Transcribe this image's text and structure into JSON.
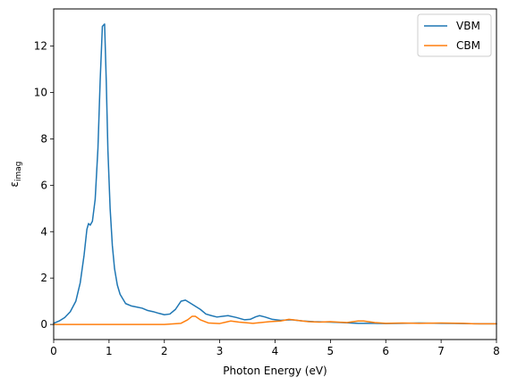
{
  "chart_data": {
    "type": "line",
    "title": "",
    "xlabel": "Photon Energy (eV)",
    "ylabel_main": "ε",
    "ylabel_sub": "imag",
    "xlim": [
      0,
      8
    ],
    "ylim": [
      -0.65,
      13.6
    ],
    "xticks": [
      0,
      1,
      2,
      3,
      4,
      5,
      6,
      7,
      8
    ],
    "yticks": [
      0,
      2,
      4,
      6,
      8,
      10,
      12
    ],
    "grid": false,
    "legend_position": "top-right",
    "series": [
      {
        "name": "VBM",
        "color": "#1f77b4",
        "points": [
          [
            0.0,
            0.05
          ],
          [
            0.1,
            0.15
          ],
          [
            0.2,
            0.3
          ],
          [
            0.3,
            0.55
          ],
          [
            0.4,
            1.0
          ],
          [
            0.48,
            1.8
          ],
          [
            0.55,
            3.0
          ],
          [
            0.6,
            4.1
          ],
          [
            0.63,
            4.35
          ],
          [
            0.66,
            4.28
          ],
          [
            0.7,
            4.45
          ],
          [
            0.75,
            5.4
          ],
          [
            0.8,
            7.6
          ],
          [
            0.84,
            10.5
          ],
          [
            0.88,
            12.85
          ],
          [
            0.92,
            12.95
          ],
          [
            0.95,
            10.5
          ],
          [
            0.98,
            7.5
          ],
          [
            1.02,
            5.0
          ],
          [
            1.06,
            3.4
          ],
          [
            1.1,
            2.4
          ],
          [
            1.15,
            1.7
          ],
          [
            1.2,
            1.3
          ],
          [
            1.3,
            0.9
          ],
          [
            1.4,
            0.8
          ],
          [
            1.5,
            0.75
          ],
          [
            1.6,
            0.7
          ],
          [
            1.7,
            0.6
          ],
          [
            1.8,
            0.55
          ],
          [
            1.9,
            0.48
          ],
          [
            2.0,
            0.42
          ],
          [
            2.1,
            0.45
          ],
          [
            2.2,
            0.65
          ],
          [
            2.3,
            1.0
          ],
          [
            2.38,
            1.05
          ],
          [
            2.45,
            0.95
          ],
          [
            2.55,
            0.8
          ],
          [
            2.65,
            0.65
          ],
          [
            2.75,
            0.45
          ],
          [
            2.85,
            0.38
          ],
          [
            2.95,
            0.32
          ],
          [
            3.05,
            0.35
          ],
          [
            3.15,
            0.38
          ],
          [
            3.3,
            0.3
          ],
          [
            3.45,
            0.2
          ],
          [
            3.55,
            0.22
          ],
          [
            3.65,
            0.33
          ],
          [
            3.72,
            0.38
          ],
          [
            3.82,
            0.32
          ],
          [
            3.95,
            0.22
          ],
          [
            4.1,
            0.18
          ],
          [
            4.3,
            0.2
          ],
          [
            4.5,
            0.15
          ],
          [
            4.7,
            0.12
          ],
          [
            5.0,
            0.1
          ],
          [
            5.2,
            0.08
          ],
          [
            5.5,
            0.05
          ],
          [
            5.8,
            0.05
          ],
          [
            6.0,
            0.04
          ],
          [
            6.3,
            0.05
          ],
          [
            6.6,
            0.06
          ],
          [
            7.0,
            0.05
          ],
          [
            7.4,
            0.04
          ],
          [
            7.7,
            0.03
          ],
          [
            8.0,
            0.03
          ]
        ]
      },
      {
        "name": "CBM",
        "color": "#ff7f0e",
        "points": [
          [
            0.0,
            0.0
          ],
          [
            1.0,
            0.0
          ],
          [
            2.0,
            0.0
          ],
          [
            2.3,
            0.05
          ],
          [
            2.42,
            0.2
          ],
          [
            2.5,
            0.35
          ],
          [
            2.56,
            0.35
          ],
          [
            2.65,
            0.2
          ],
          [
            2.8,
            0.06
          ],
          [
            3.0,
            0.04
          ],
          [
            3.2,
            0.15
          ],
          [
            3.35,
            0.1
          ],
          [
            3.6,
            0.05
          ],
          [
            3.9,
            0.12
          ],
          [
            4.1,
            0.15
          ],
          [
            4.25,
            0.22
          ],
          [
            4.4,
            0.18
          ],
          [
            4.6,
            0.12
          ],
          [
            4.8,
            0.1
          ],
          [
            5.0,
            0.12
          ],
          [
            5.3,
            0.08
          ],
          [
            5.5,
            0.15
          ],
          [
            5.6,
            0.15
          ],
          [
            5.8,
            0.08
          ],
          [
            6.0,
            0.05
          ],
          [
            6.3,
            0.06
          ],
          [
            6.6,
            0.05
          ],
          [
            7.0,
            0.06
          ],
          [
            7.4,
            0.05
          ],
          [
            7.6,
            0.03
          ],
          [
            8.0,
            0.03
          ]
        ]
      }
    ]
  }
}
